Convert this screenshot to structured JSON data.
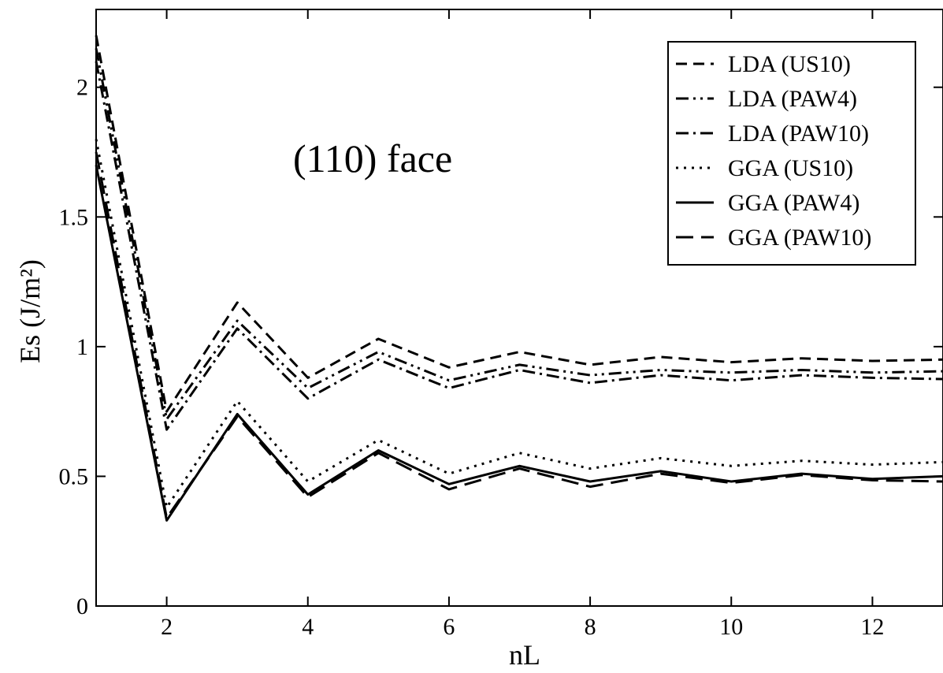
{
  "chart_data": {
    "type": "line",
    "title": "",
    "annotation": "(110) face",
    "xlabel": "nL",
    "ylabel": "Es (J/m²)",
    "xlim": [
      1,
      13
    ],
    "ylim": [
      0,
      2.3
    ],
    "xticks": [
      2,
      4,
      6,
      8,
      10,
      12
    ],
    "yticks": [
      0,
      0.5,
      1,
      1.5,
      2
    ],
    "ytick_labels": [
      "0",
      "0.5",
      "1",
      "1.5",
      "2"
    ],
    "grid": false,
    "legend_position": "top-right",
    "x": [
      1,
      2,
      3,
      4,
      5,
      6,
      7,
      8,
      9,
      10,
      11,
      12,
      13
    ],
    "series": [
      {
        "name": "LDA (US10)",
        "dash": "dash",
        "values": [
          2.2,
          0.75,
          1.17,
          0.88,
          1.03,
          0.92,
          0.98,
          0.93,
          0.96,
          0.94,
          0.955,
          0.945,
          0.95
        ]
      },
      {
        "name": "LDA (PAW4)",
        "dash": "dash-dot-dot",
        "values": [
          2.15,
          0.72,
          1.1,
          0.84,
          0.98,
          0.87,
          0.93,
          0.89,
          0.91,
          0.9,
          0.91,
          0.9,
          0.905
        ]
      },
      {
        "name": "LDA (PAW10)",
        "dash": "dash-dot",
        "values": [
          2.1,
          0.68,
          1.07,
          0.8,
          0.95,
          0.84,
          0.91,
          0.86,
          0.89,
          0.87,
          0.89,
          0.88,
          0.875
        ]
      },
      {
        "name": "GGA (US10)",
        "dash": "dot",
        "values": [
          1.8,
          0.38,
          0.79,
          0.48,
          0.64,
          0.51,
          0.59,
          0.53,
          0.57,
          0.54,
          0.56,
          0.545,
          0.555
        ]
      },
      {
        "name": "GGA (PAW4)",
        "dash": "solid",
        "values": [
          1.7,
          0.33,
          0.74,
          0.43,
          0.6,
          0.47,
          0.54,
          0.48,
          0.52,
          0.48,
          0.51,
          0.49,
          0.5
        ]
      },
      {
        "name": "GGA (PAW10)",
        "dash": "long-dash",
        "values": [
          1.75,
          0.34,
          0.73,
          0.42,
          0.59,
          0.45,
          0.53,
          0.46,
          0.51,
          0.475,
          0.505,
          0.485,
          0.48
        ]
      }
    ]
  }
}
